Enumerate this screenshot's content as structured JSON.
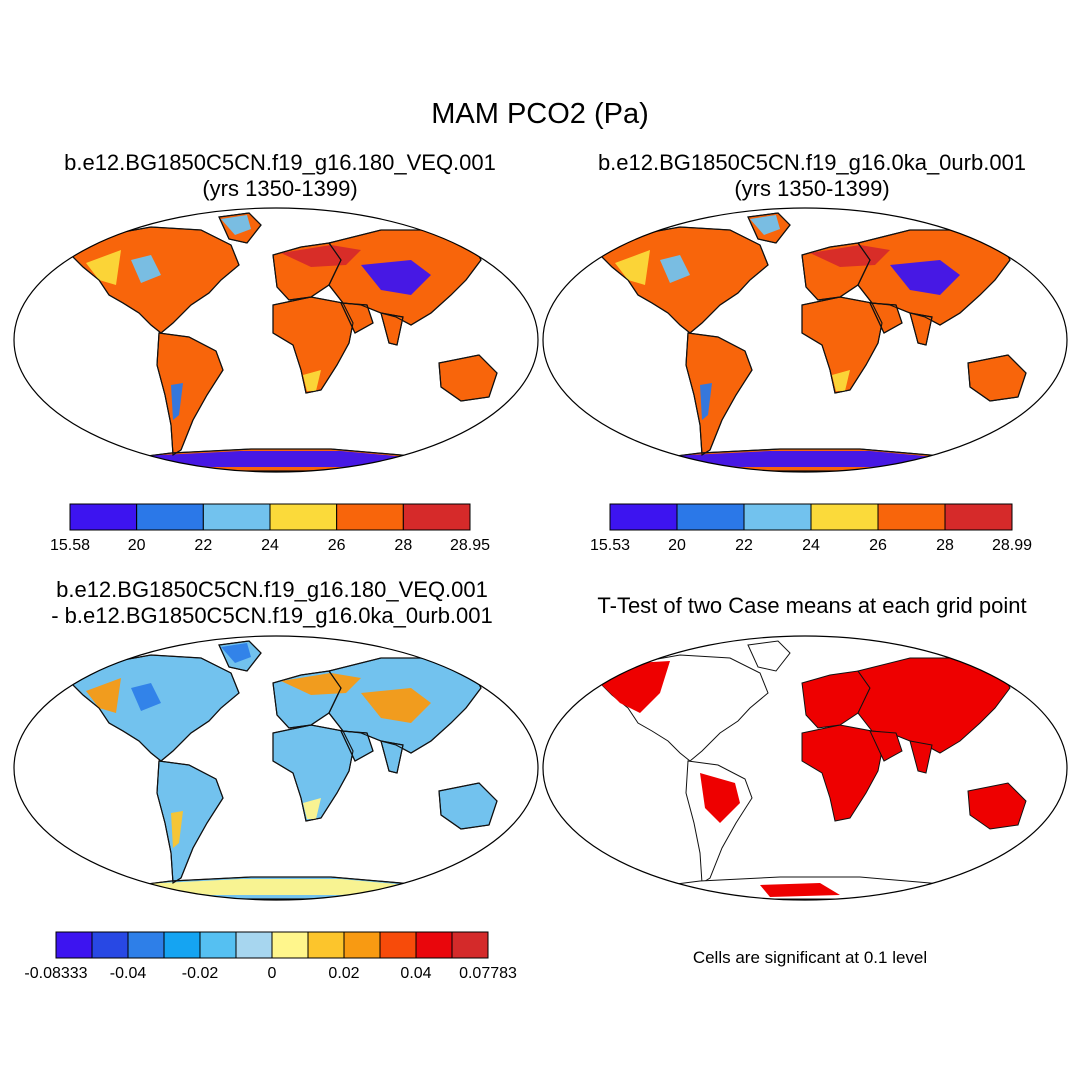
{
  "figure": {
    "title": "MAM PCO2 (Pa)",
    "panels": [
      {
        "id": "p1",
        "title_line1": "b.e12.BG1850C5CN.f19_g16.180_VEQ.001",
        "title_line2": "(yrs 1350-1399)"
      },
      {
        "id": "p2",
        "title_line1": "b.e12.BG1850C5CN.f19_g16.0ka_0urb.001",
        "title_line2": "(yrs 1350-1399)"
      },
      {
        "id": "p3",
        "title_line1": "b.e12.BG1850C5CN.f19_g16.180_VEQ.001",
        "title_line2": "- b.e12.BG1850C5CN.f19_g16.0ka_0urb.001"
      },
      {
        "id": "p4",
        "title_line1": "T-Test of two Case means at each grid point",
        "title_line2": ""
      }
    ],
    "significance_note": "Cells are significant at 0.1 level"
  },
  "colorbars": {
    "cb1": {
      "labels": [
        "15.58",
        "20",
        "22",
        "24",
        "26",
        "28",
        "28.95"
      ],
      "colors": [
        "#3d14f0",
        "#2b78e8",
        "#72c2ee",
        "#fbda3a",
        "#f8650b",
        "#d62a2a"
      ]
    },
    "cb2": {
      "labels": [
        "15.53",
        "20",
        "22",
        "24",
        "26",
        "28",
        "28.99"
      ],
      "colors": [
        "#3d14f0",
        "#2b78e8",
        "#72c2ee",
        "#fbda3a",
        "#f8650b",
        "#d62a2a"
      ]
    },
    "cb3": {
      "labels": [
        "-0.08333",
        "-0.04",
        "-0.02",
        "0",
        "0.02",
        "0.04",
        "0.07783"
      ],
      "colors": [
        "#3d14f0",
        "#2848e4",
        "#2e7fe8",
        "#15a4f2",
        "#55c0f2",
        "#a7d6ef",
        "#fff68c",
        "#fcc52c",
        "#f89a12",
        "#f74b0a",
        "#e9060c",
        "#d42a2a"
      ]
    }
  },
  "map_styles": {
    "p1": {
      "land": "#f8650b",
      "ocean": "#ffffff",
      "coast": "#111111",
      "high": "#d62a2a",
      "mid": "#fbda3a",
      "low": "#72c2ee",
      "lowest": "#3d14f0",
      "low2": "#2b78e8"
    },
    "p2": {
      "land": "#f8650b",
      "ocean": "#ffffff",
      "coast": "#111111",
      "high": "#d62a2a",
      "mid": "#fbda3a",
      "low": "#72c2ee",
      "lowest": "#3d14f0",
      "low2": "#2b78e8"
    },
    "p3": {
      "land": "#72c2ee",
      "ocean": "#ffffff",
      "coast": "#111111",
      "high": "#f89a12",
      "mid": "#fff68c",
      "low": "#2e7fe8",
      "lowest": "#2848e4",
      "low2": "#fcc52c"
    },
    "p4": {
      "land": "#ffffff",
      "ocean": "#ffffff",
      "coast": "#111111",
      "sig": "#ee0000"
    }
  }
}
